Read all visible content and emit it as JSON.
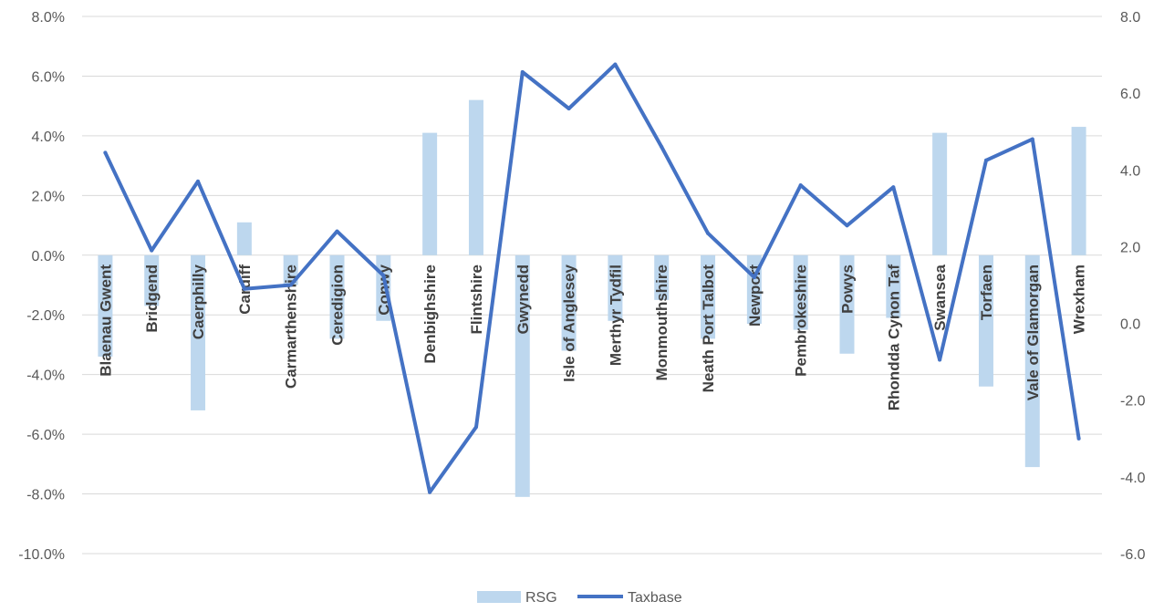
{
  "chart_data": {
    "type": "bar",
    "categories": [
      "Blaenau Gwent",
      "Bridgend",
      "Caerphilly",
      "Cardiff",
      "Carmarthenshire",
      "Ceredigion",
      "Conwy",
      "Denbighshire",
      "Flintshire",
      "Gwynedd",
      "Isle of Anglesey",
      "Merthyr Tydfil",
      "Monmouthshire",
      "Neath Port Talbot",
      "Newport",
      "Pembrokeshire",
      "Powys",
      "Rhondda Cynon Taf",
      "Swansea",
      "Torfaen",
      "Vale of Glamorgan",
      "Wrexham"
    ],
    "series": [
      {
        "name": "RSG",
        "type": "bar",
        "axis": "left",
        "color": "#bdd7ee",
        "values": [
          -3.4,
          -1.7,
          -5.2,
          1.1,
          -1.0,
          -2.8,
          -2.2,
          4.1,
          5.2,
          -8.1,
          -3.2,
          -2.2,
          -1.5,
          -2.8,
          -2.3,
          -2.5,
          -3.3,
          -2.1,
          4.1,
          -4.4,
          -7.1,
          4.3
        ]
      },
      {
        "name": "Taxbase",
        "type": "line",
        "axis": "right",
        "color": "#4472c4",
        "values": [
          4.45,
          1.9,
          3.7,
          0.9,
          1.0,
          2.4,
          1.25,
          -4.4,
          -2.7,
          6.55,
          5.6,
          6.75,
          4.6,
          2.35,
          1.2,
          3.6,
          2.55,
          3.55,
          -0.95,
          4.25,
          4.8,
          -3.0
        ]
      }
    ],
    "y_left": {
      "min": -10,
      "max": 8,
      "step": 2,
      "format": "percent1",
      "ticks": [
        "8.0%",
        "6.0%",
        "4.0%",
        "2.0%",
        "0.0%",
        "-2.0%",
        "-4.0%",
        "-6.0%",
        "-8.0%",
        "-10.0%"
      ]
    },
    "y_right": {
      "min": -6,
      "max": 8,
      "step": 2,
      "ticks": [
        "8.0",
        "6.0",
        "4.0",
        "2.0",
        "0.0",
        "-2.0",
        "-4.0",
        "-6.0"
      ]
    },
    "grid": true,
    "legend": {
      "position": "bottom",
      "items": [
        "RSG",
        "Taxbase"
      ]
    }
  }
}
